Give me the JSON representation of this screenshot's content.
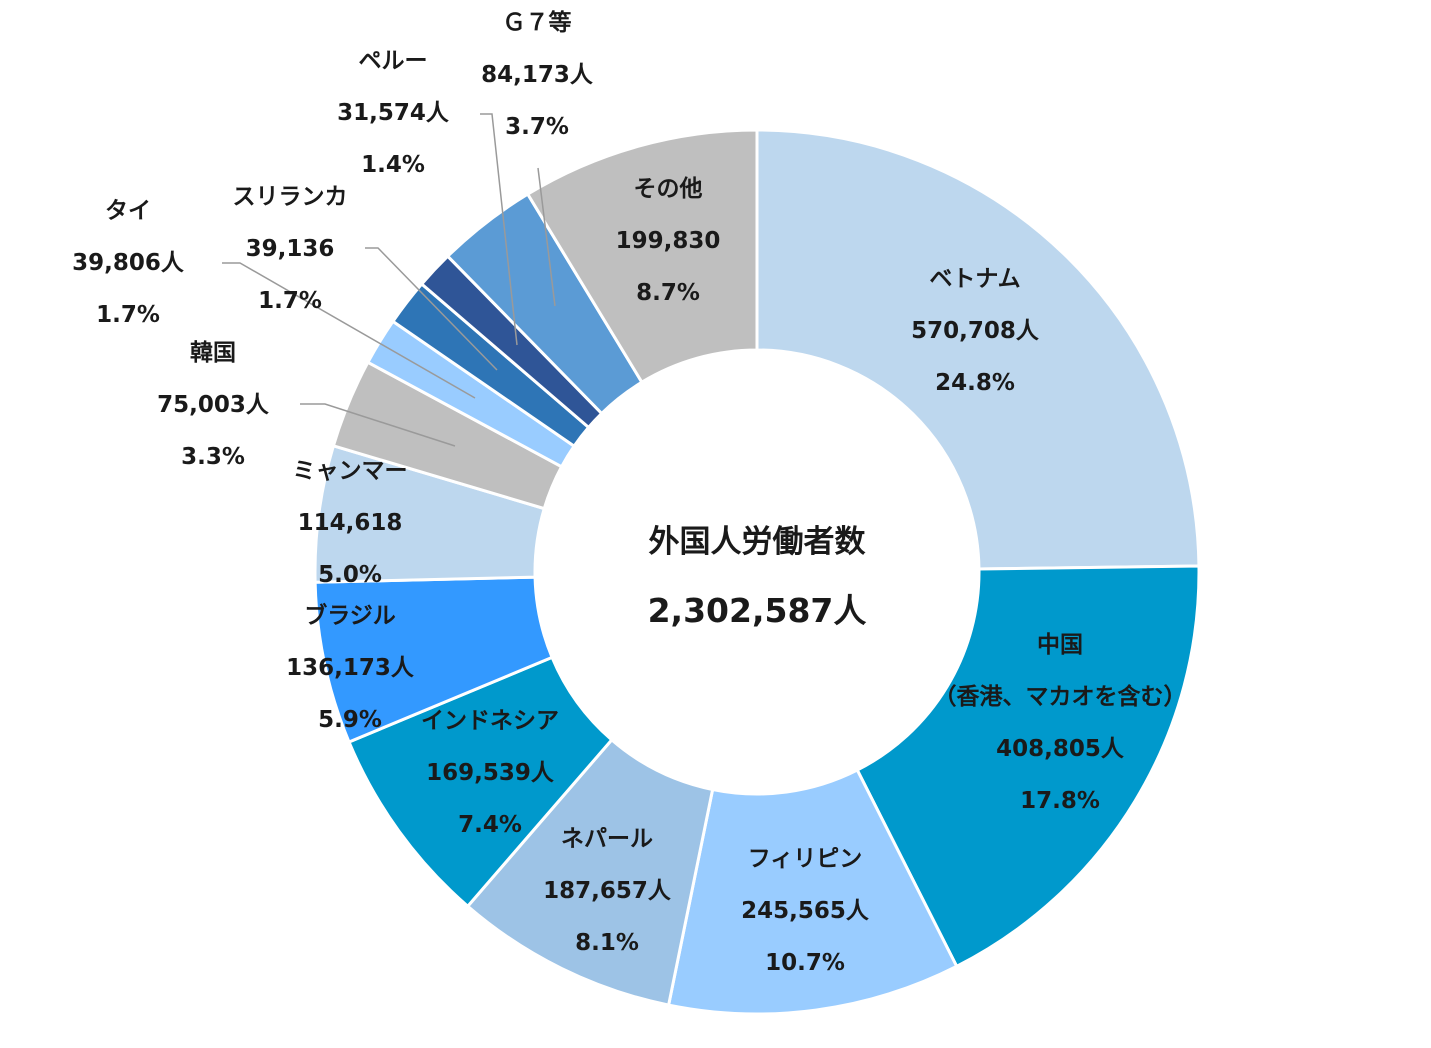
{
  "chart_data": {
    "type": "pie",
    "center": {
      "title": "外国人労働者数",
      "total": "2,302,587人"
    },
    "slices": [
      {
        "name": "ベトナム",
        "value_label": "570,708人",
        "percent_label": "24.8%",
        "value": 570708,
        "color": "#bdd7ee"
      },
      {
        "name": "中国",
        "sub": "（香港、マカオを含む）",
        "value_label": "408,805人",
        "percent_label": "17.8%",
        "value": 408805,
        "color": "#0099cc"
      },
      {
        "name": "フィリピン",
        "value_label": "245,565人",
        "percent_label": "10.7%",
        "value": 245565,
        "color": "#99ccff"
      },
      {
        "name": "ネパール",
        "value_label": "187,657人",
        "percent_label": "8.1%",
        "value": 187657,
        "color": "#9dc3e6"
      },
      {
        "name": "インドネシア",
        "value_label": "169,539人",
        "percent_label": "7.4%",
        "value": 169539,
        "color": "#0099cc"
      },
      {
        "name": "ブラジル",
        "value_label": "136,173人",
        "percent_label": "5.9%",
        "value": 136173,
        "color": "#3399ff"
      },
      {
        "name": "ミャンマー",
        "value_label": "114,618",
        "percent_label": "5.0%",
        "value": 114618,
        "color": "#bdd7ee"
      },
      {
        "name": "韓国",
        "value_label": "75,003人",
        "percent_label": "3.3%",
        "value": 75003,
        "color": "#bfbfbf"
      },
      {
        "name": "タイ",
        "value_label": "39,806人",
        "percent_label": "1.7%",
        "value": 39806,
        "color": "#99ccff"
      },
      {
        "name": "スリランカ",
        "value_label": "39,136",
        "percent_label": "1.7%",
        "value": 39136,
        "color": "#2e75b6"
      },
      {
        "name": "ペルー",
        "value_label": "31,574人",
        "percent_label": "1.4%",
        "value": 31574,
        "color": "#2f5597"
      },
      {
        "name": "Ｇ７等",
        "value_label": "84,173人",
        "percent_label": "3.7%",
        "value": 84173,
        "color": "#5b9bd5"
      },
      {
        "name": "その他",
        "value_label": "199,830",
        "percent_label": "8.7%",
        "value": 199830,
        "color": "#bfbfbf"
      }
    ]
  }
}
